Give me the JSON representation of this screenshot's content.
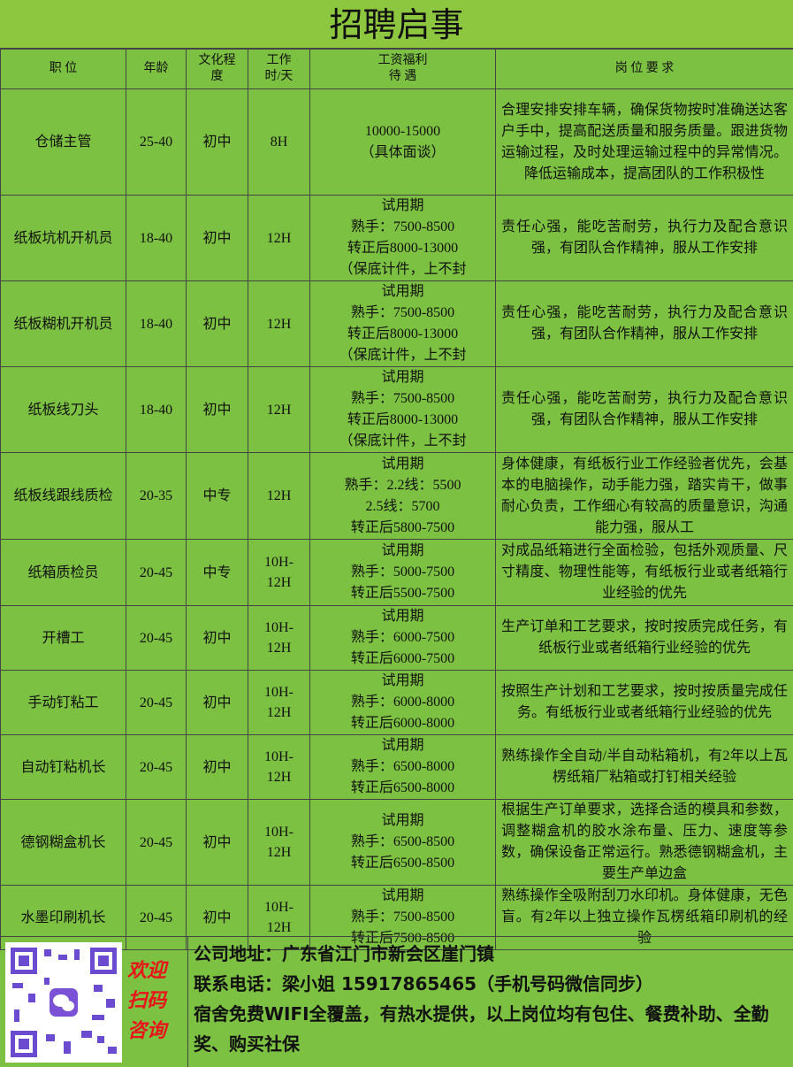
{
  "title": "招聘启事",
  "table": {
    "headers": [
      [
        "职  位"
      ],
      [
        "年龄"
      ],
      [
        "文化程",
        "度"
      ],
      [
        "工作",
        "时/天"
      ],
      [
        "工资福利",
        "待  遇"
      ],
      [
        "岗 位 要 求"
      ]
    ],
    "rows": [
      [
        "仓储主管",
        "25-40",
        "初中",
        "8H",
        [
          "10000-15000",
          "（具体面谈）"
        ],
        "合理安排安排车辆，确保货物按时准确送达客户手中，提高配送质量和服务质量。跟进货物运输过程，及时处理运输过程中的异常情况。降低运输成本，提高团队的工作积极性"
      ],
      [
        "纸板坑机开机员",
        "18-40",
        "初中",
        "12H",
        [
          "试用期",
          "熟手：7500-8500",
          "转正后8000-13000",
          "（保底计件，上不封"
        ],
        "责任心强，能吃苦耐劳，执行力及配合意识强，有团队合作精神，服从工作安排"
      ],
      [
        "纸板糊机开机员",
        "18-40",
        "初中",
        "12H",
        [
          "试用期",
          "熟手：7500-8500",
          "转正后8000-13000",
          "（保底计件，上不封"
        ],
        "责任心强，能吃苦耐劳，执行力及配合意识强，有团队合作精神，服从工作安排"
      ],
      [
        "纸板线刀头",
        "18-40",
        "初中",
        "12H",
        [
          "试用期",
          "熟手：7500-8500",
          "转正后8000-13000",
          "（保底计件，上不封"
        ],
        "责任心强，能吃苦耐劳，执行力及配合意识强，有团队合作精神，服从工作安排"
      ],
      [
        "纸板线跟线质检",
        "20-35",
        "中专",
        "12H",
        [
          "试用期",
          "熟手：2.2线：5500",
          "2.5线：5700",
          "转正后5800-7500"
        ],
        "身体健康，有纸板行业工作经验者优先，会基本的电脑操作，动手能力强，踏实肯干，做事耐心负责，工作细心有较高的质量意识，沟通能力强，服从工"
      ],
      [
        "纸箱质检员",
        "20-45",
        "中专",
        [
          "10H-",
          "12H"
        ],
        [
          "试用期",
          "熟手：5000-7500",
          "转正后5500-7500"
        ],
        "对成品纸箱进行全面检验，包括外观质量、尺寸精度、物理性能等，有纸板行业或者纸箱行业经验的优先"
      ],
      [
        "开槽工",
        "20-45",
        "初中",
        [
          "10H-",
          "12H"
        ],
        [
          "试用期",
          "熟手：6000-7500",
          "转正后6000-7500"
        ],
        "生产订单和工艺要求，按时按质完成任务，有纸板行业或者纸箱行业经验的优先"
      ],
      [
        "手动钉粘工",
        "20-45",
        "初中",
        [
          "10H-",
          "12H"
        ],
        [
          "试用期",
          "熟手：6000-8000",
          "转正后6000-8000"
        ],
        "按照生产计划和工艺要求，按时按质量完成任务。有纸板行业或者纸箱行业经验的优先"
      ],
      [
        "自动钉粘机长",
        "20-45",
        "初中",
        [
          "10H-",
          "12H"
        ],
        [
          "试用期",
          "熟手：6500-8000",
          "转正后6500-8000"
        ],
        "熟练操作全自动/半自动粘箱机，有2年以上瓦楞纸箱厂粘箱或打钉相关经验"
      ],
      [
        "德钢糊盒机长",
        "20-45",
        "初中",
        [
          "10H-",
          "12H"
        ],
        [
          "试用期",
          "熟手：6500-8500",
          "转正后6500-8500"
        ],
        "根据生产订单要求，选择合适的模具和参数，调整糊盒机的胶水涂布量、压力、速度等参数，确保设备正常运行。熟悉德钢糊盒机，主要生产单边盒"
      ],
      [
        "水墨印刷机长",
        "20-45",
        "初中",
        [
          "10H-",
          "12H"
        ],
        [
          "试用期",
          "熟手：7500-8500",
          "转正后7500-8500"
        ],
        "熟练操作全吸附刮刀水印机。身体健康，无色盲。有2年以上独立操作瓦楞纸箱印刷机的经验"
      ]
    ]
  },
  "footer": {
    "qr_caption": [
      "欢迎",
      "扫码",
      "咨询"
    ],
    "lines": [
      "公司地址：广东省江门市新会区崖门镇",
      "联系电话：梁小姐 15917865465（手机号码微信同步）",
      "宿舍免费WIFI全覆盖，有热水提供，以上岗位均有包住、餐费补助、全勤奖、购买社保"
    ]
  }
}
